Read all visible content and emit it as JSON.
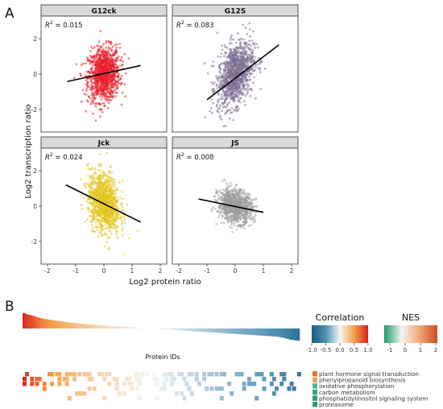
{
  "panel_labels": {
    "a": "A",
    "b": "B"
  },
  "panel_a": {
    "ylabel": "Log2 transcription ratio",
    "xlabel": "Log2 protein ratio",
    "x_ticks": [
      "-2",
      "-1",
      "0",
      "1",
      "2"
    ],
    "y_ticks": [
      "2",
      "0",
      "-2"
    ],
    "r2_prefix": "R",
    "r2_sup": "2",
    "r2_eq": " = "
  },
  "panel_b": {
    "protein_ids_label": "Protein IDs",
    "correlation_title": "Correlation",
    "correlation_ticks": [
      "-1.0",
      "-0.5",
      "0.0",
      "0.5",
      "1.0"
    ],
    "nes_title": "NES",
    "nes_ticks": [
      "-1",
      "0",
      "1",
      "2"
    ],
    "pathways": [
      {
        "name": "plant hormone signal transduction",
        "color": "#e8742a"
      },
      {
        "name": "phenylpropanoid biosynthesis",
        "color": "#eda05a"
      },
      {
        "name": "oxidative phosphorylation",
        "color": "#4fb589"
      },
      {
        "name": "carbon metabolism",
        "color": "#39a77a"
      },
      {
        "name": "phosphatidylinositol signaling system",
        "color": "#2e9e70"
      },
      {
        "name": "proteasome",
        "color": "#2c9a6c"
      }
    ]
  },
  "colors": {
    "strip_fill": "#d9d9d9",
    "G12ck": "#e8212b",
    "G12S": "#7d6e93",
    "Jck": "#e3c41d",
    "JS": "#9e9e9e",
    "corr_low": "#1d5c80",
    "corr_high": "#d81f1f",
    "corr_mid_pos": "#f28a1a",
    "nes_low": "#1e9a6c",
    "nes_high": "#cc4e1a"
  },
  "chart_data": [
    {
      "type": "scatter",
      "name": "G12ck",
      "r2": "0.015",
      "xlim": [
        -2,
        2
      ],
      "ylim": [
        -3,
        3
      ],
      "regression": {
        "x": [
          -1.3,
          1.3
        ],
        "y": [
          -0.42,
          0.48
        ]
      },
      "cloud": {
        "x_mean": 0.0,
        "x_sd": 0.28,
        "y_mean": 0.0,
        "y_sd": 0.75,
        "n": 1100
      }
    },
    {
      "type": "scatter",
      "name": "G12S",
      "r2": "0.083",
      "xlim": [
        -2,
        2
      ],
      "ylim": [
        -3,
        3
      ],
      "regression": {
        "x": [
          -1.0,
          1.55
        ],
        "y": [
          -1.45,
          1.65
        ]
      },
      "cloud": {
        "x_mean": 0.0,
        "x_sd": 0.32,
        "y_mean": 0.0,
        "y_sd": 0.85,
        "n": 1100
      }
    },
    {
      "type": "scatter",
      "name": "Jck",
      "r2": "0.024",
      "xlim": [
        -2,
        2
      ],
      "ylim": [
        -3,
        3
      ],
      "regression": {
        "x": [
          -1.35,
          1.3
        ],
        "y": [
          1.2,
          -0.9
        ]
      },
      "cloud": {
        "x_mean": 0.0,
        "x_sd": 0.28,
        "y_mean": 0.2,
        "y_sd": 0.8,
        "n": 1100
      }
    },
    {
      "type": "scatter",
      "name": "JS",
      "r2": "0.008",
      "xlim": [
        -2,
        2
      ],
      "ylim": [
        -3,
        3
      ],
      "regression": {
        "x": [
          -1.3,
          1.0
        ],
        "y": [
          0.4,
          -0.35
        ]
      },
      "cloud": {
        "x_mean": 0.0,
        "x_sd": 0.3,
        "y_mean": 0.0,
        "y_sd": 0.45,
        "n": 1000
      }
    },
    {
      "type": "bar",
      "name": "correlation ranking",
      "n_proteins": 300,
      "ylim": [
        -1,
        1
      ],
      "values_sorted": [
        0.96,
        0.9,
        0.85,
        0.82,
        0.78,
        0.72,
        0.68,
        0.64,
        0.6,
        0.58,
        0.55,
        0.53,
        0.5,
        0.48,
        0.46,
        0.44,
        0.42,
        0.4,
        0.38,
        0.36,
        0.35,
        0.33,
        0.32,
        0.3,
        0.29,
        0.27,
        0.26,
        0.25,
        0.24,
        0.22,
        0.21,
        0.2,
        0.19,
        0.18,
        0.17,
        0.16,
        0.15,
        0.14,
        0.13,
        0.12,
        0.11,
        0.1,
        0.09,
        0.08,
        0.07,
        0.06,
        0.05,
        0.04,
        0.03,
        0.02,
        0.01,
        0.0,
        -0.01,
        -0.02,
        -0.03,
        -0.04,
        -0.05,
        -0.06,
        -0.07,
        -0.08,
        -0.09,
        -0.1,
        -0.11,
        -0.12,
        -0.13,
        -0.14,
        -0.15,
        -0.16,
        -0.17,
        -0.18,
        -0.19,
        -0.2,
        -0.21,
        -0.22,
        -0.23,
        -0.24,
        -0.25,
        -0.26,
        -0.27,
        -0.28,
        -0.29,
        -0.3,
        -0.31,
        -0.32,
        -0.33,
        -0.34,
        -0.35,
        -0.36,
        -0.37,
        -0.38,
        -0.39,
        -0.4,
        -0.41,
        -0.42,
        -0.43,
        -0.44,
        -0.45,
        -0.46,
        -0.47,
        -0.48,
        -0.49,
        -0.5,
        -0.52,
        -0.55,
        -0.58,
        -0.62,
        -0.66,
        -0.7,
        -0.72,
        -0.74,
        -0.76
      ]
    }
  ]
}
